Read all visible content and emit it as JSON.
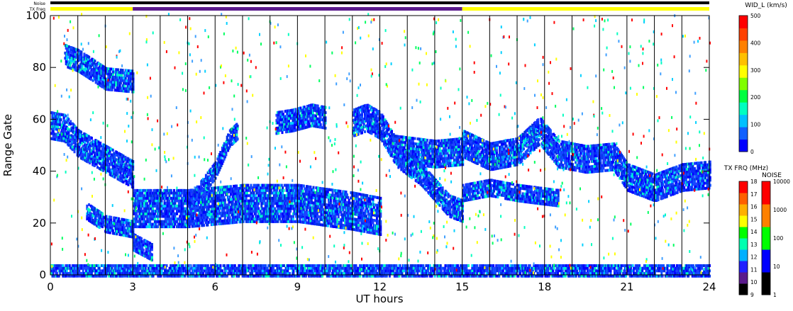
{
  "header": {
    "noise_label": "Noise",
    "txfreq_label": "TX Freq"
  },
  "chart_data": {
    "type": "heatmap",
    "title": "",
    "xlabel": "UT hours",
    "ylabel": "Range Gate",
    "xlim": [
      0,
      24
    ],
    "ylim": [
      0,
      100
    ],
    "x_ticks": [
      "0",
      "3",
      "6",
      "9",
      "12",
      "15",
      "18",
      "21",
      "24"
    ],
    "y_ticks": [
      "0",
      "20",
      "40",
      "60",
      "80",
      "100"
    ],
    "vertical_markers_hours": [
      1,
      2,
      3,
      4,
      5,
      6,
      7,
      8,
      9,
      10,
      11,
      12,
      13,
      14,
      15,
      16,
      17,
      18,
      19,
      20,
      21,
      22,
      23
    ],
    "tx_freq_segments": [
      {
        "start": 0,
        "end": 3,
        "color": "#ffff00"
      },
      {
        "start": 3,
        "end": 15,
        "color": "#5a1a8c"
      },
      {
        "start": 15,
        "end": 24,
        "color": "#ffff00"
      }
    ],
    "bands": [
      {
        "name": "band-a",
        "points": [
          [
            0,
            57
          ],
          [
            0.5,
            56
          ],
          [
            1,
            50
          ],
          [
            2,
            44
          ],
          [
            3,
            38
          ]
        ],
        "width": 5
      },
      {
        "name": "band-b",
        "points": [
          [
            0.5,
            84
          ],
          [
            1,
            82
          ],
          [
            2,
            75
          ],
          [
            3,
            74
          ]
        ],
        "width": 4
      },
      {
        "name": "band-c",
        "points": [
          [
            1.3,
            24
          ],
          [
            2,
            19
          ],
          [
            3,
            17
          ]
        ],
        "width": 3
      },
      {
        "name": "band-d",
        "points": [
          [
            3,
            25
          ],
          [
            5,
            25
          ],
          [
            7,
            27
          ],
          [
            9,
            27
          ],
          [
            11,
            24
          ],
          [
            12,
            22
          ]
        ],
        "width": 7
      },
      {
        "name": "band-e",
        "points": [
          [
            3,
            12
          ],
          [
            3.7,
            8
          ]
        ],
        "width": 3
      },
      {
        "name": "band-f",
        "points": [
          [
            5,
            26
          ],
          [
            6,
            40
          ],
          [
            6.5,
            52
          ],
          [
            6.8,
            55
          ]
        ],
        "width": 3
      },
      {
        "name": "band-g",
        "points": [
          [
            8.2,
            58
          ],
          [
            8.8,
            59
          ],
          [
            9.5,
            61
          ],
          [
            10,
            60
          ]
        ],
        "width": 4
      },
      {
        "name": "band-h",
        "points": [
          [
            11,
            58
          ],
          [
            11.5,
            60
          ],
          [
            12,
            57
          ],
          [
            12.5,
            48
          ],
          [
            14,
            46
          ],
          [
            15,
            47
          ]
        ],
        "width": 5
      },
      {
        "name": "band-i",
        "points": [
          [
            12.5,
            46
          ],
          [
            13.5,
            38
          ],
          [
            14.5,
            26
          ],
          [
            15,
            24
          ]
        ],
        "width": 4
      },
      {
        "name": "band-j",
        "points": [
          [
            15,
            50
          ],
          [
            16,
            45
          ],
          [
            17,
            47
          ],
          [
            17.8,
            55
          ],
          [
            18.5,
            46
          ],
          [
            19.5,
            44
          ],
          [
            20.5,
            45
          ],
          [
            21,
            37
          ],
          [
            22,
            33
          ],
          [
            23,
            37
          ],
          [
            24,
            38
          ]
        ],
        "width": 5
      },
      {
        "name": "band-k",
        "points": [
          [
            15,
            31
          ],
          [
            16,
            33
          ],
          [
            17,
            31
          ],
          [
            18.5,
            29
          ]
        ],
        "width": 3
      },
      {
        "name": "band-l",
        "points": [
          [
            0,
            1
          ],
          [
            24,
            1
          ]
        ],
        "width": 2
      }
    ],
    "colorbars": [
      {
        "label": "WID_L (km/s)",
        "ticks": [
          "0",
          "100",
          "200",
          "300",
          "400",
          "500"
        ],
        "colors": [
          "#0000ff",
          "#1060ff",
          "#00c0ff",
          "#00ffc0",
          "#00ff40",
          "#80ff00",
          "#ffff00",
          "#ffc000",
          "#ff8000",
          "#ff4000",
          "#ff0000"
        ]
      },
      {
        "label": "TX FRQ (MHz)",
        "ticks": [
          "9",
          "10",
          "11",
          "12",
          "13",
          "14",
          "15",
          "16",
          "17",
          "18"
        ],
        "colors": [
          "#000000",
          "#5a1a8c",
          "#2020ff",
          "#00b0ff",
          "#00ffb0",
          "#00ff00",
          "#ffff00",
          "#ffb000",
          "#ff6000",
          "#ff0000"
        ]
      },
      {
        "label": "NOISE",
        "ticks": [
          "1",
          "10",
          "100",
          "1000",
          "10000"
        ],
        "colors": [
          "#000000",
          "#0000ff",
          "#00ff00",
          "#ff8000",
          "#ff0000"
        ]
      }
    ]
  }
}
